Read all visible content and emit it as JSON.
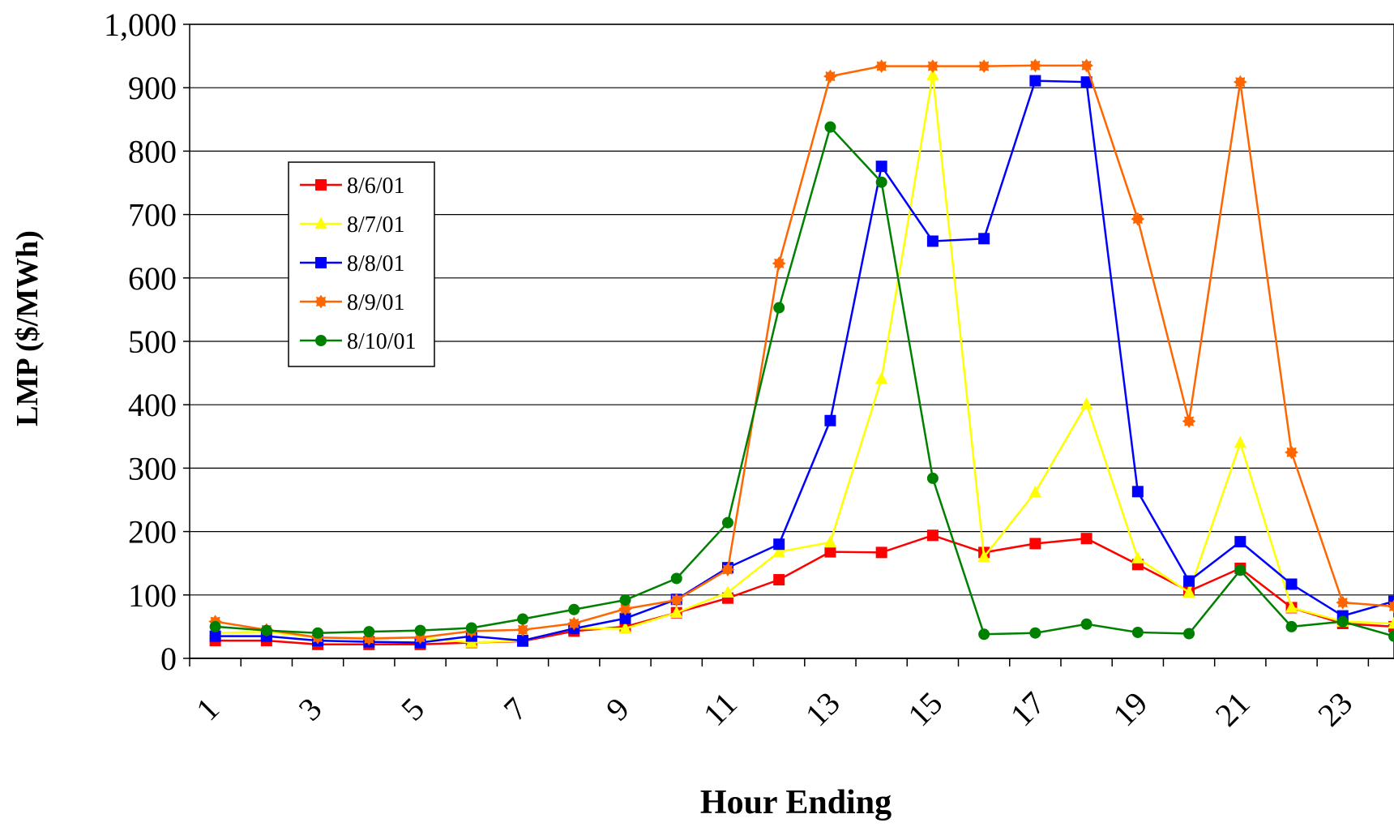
{
  "chart_data": {
    "type": "line",
    "xlabel": "Hour Ending",
    "ylabel": "LMP ($/MWh)",
    "x": [
      1,
      2,
      3,
      4,
      5,
      6,
      7,
      8,
      9,
      10,
      11,
      12,
      13,
      14,
      15,
      16,
      17,
      18,
      19,
      20,
      21,
      22,
      23,
      24
    ],
    "x_tick_labels": [
      "1",
      "3",
      "5",
      "7",
      "9",
      "11",
      "13",
      "15",
      "17",
      "19",
      "21",
      "23"
    ],
    "ylim": [
      0,
      1000
    ],
    "y_ticks": [
      "0",
      "100",
      "200",
      "300",
      "400",
      "500",
      "600",
      "700",
      "800",
      "900",
      "1,000"
    ],
    "grid": "horizontal",
    "legend_position": "upper-left",
    "series": [
      {
        "name": "8/6/01",
        "color": "#ff0000",
        "marker": "square",
        "values": [
          28,
          28,
          22,
          22,
          22,
          25,
          27,
          43,
          50,
          72,
          95,
          124,
          168,
          167,
          194,
          167,
          181,
          189,
          148,
          106,
          142,
          80,
          55,
          50
        ]
      },
      {
        "name": "8/7/01",
        "color": "#ffff00",
        "marker": "triangle",
        "values": [
          40,
          42,
          33,
          33,
          33,
          25,
          28,
          47,
          47,
          72,
          104,
          168,
          183,
          441,
          920,
          160,
          262,
          401,
          158,
          104,
          340,
          80,
          58,
          55
        ]
      },
      {
        "name": "8/8/01",
        "color": "#0000ff",
        "marker": "square",
        "values": [
          35,
          35,
          28,
          26,
          25,
          35,
          28,
          47,
          63,
          93,
          143,
          180,
          375,
          776,
          658,
          662,
          911,
          909,
          263,
          122,
          184,
          117,
          67,
          90
        ]
      },
      {
        "name": "8/9/01",
        "color": "#ff6600",
        "marker": "star",
        "values": [
          58,
          45,
          33,
          31,
          33,
          43,
          45,
          55,
          78,
          92,
          140,
          623,
          918,
          934,
          934,
          934,
          935,
          935,
          693,
          374,
          909,
          325,
          88,
          82
        ]
      },
      {
        "name": "8/10/01",
        "color": "#008000",
        "marker": "circle",
        "values": [
          50,
          44,
          40,
          42,
          44,
          48,
          62,
          77,
          92,
          126,
          214,
          553,
          838,
          751,
          284,
          38,
          40,
          54,
          41,
          39,
          139,
          50,
          58,
          35
        ]
      }
    ]
  }
}
